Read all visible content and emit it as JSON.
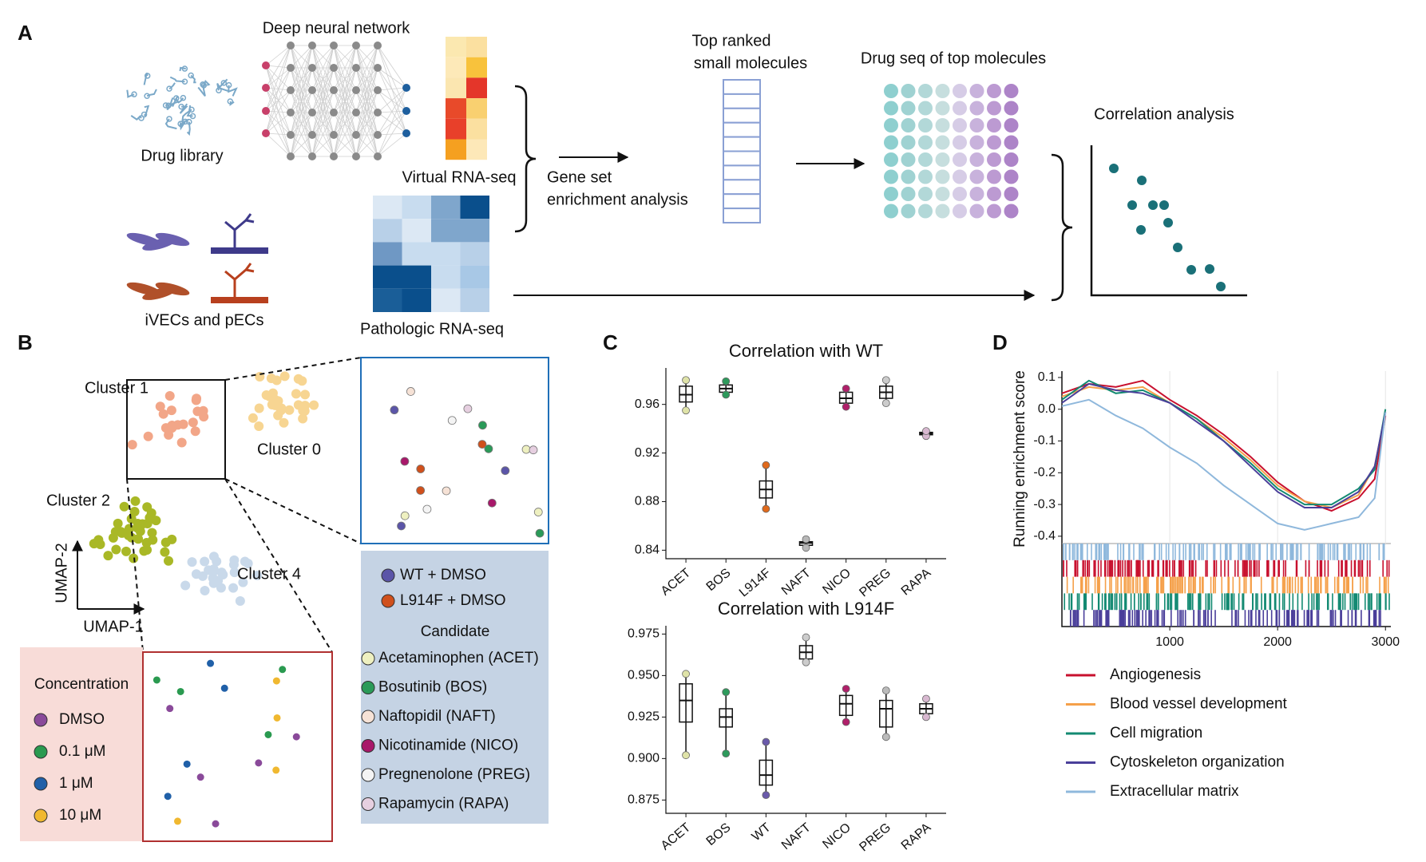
{
  "panel_a": {
    "label": "A",
    "network": "Deep neural network",
    "library": "Drug library",
    "virtual": "Virtual RNA-seq",
    "gsea": [
      "Gene set",
      "enrichment analysis"
    ],
    "top_ranked": [
      "Top ranked",
      "small molecules"
    ],
    "drug_seq": "Drug seq of top molecules",
    "correlation": "Correlation analysis",
    "cells": "iVECs and pECs",
    "pathologic": "Pathologic RNA-seq"
  },
  "panel_b": {
    "label": "B",
    "clusters": [
      {
        "name": "Cluster 1",
        "color": "#f2a688"
      },
      {
        "name": "Cluster 0",
        "color": "#f7d592"
      },
      {
        "name": "Cluster 2",
        "color": "#a9b826"
      },
      {
        "name": "Cluster 4",
        "color": "#c9d9ea"
      }
    ],
    "axis_y": "UMAP-2",
    "axis_x": "UMAP-1",
    "controls": [
      {
        "name": "WT + DMSO",
        "color": "#5b55a8"
      },
      {
        "name": "L914F + DMSO",
        "color": "#d0501c"
      }
    ],
    "candidate_title": "Candidate",
    "candidates": [
      {
        "name": "Acetaminophen (ACET)",
        "color": "#eef0c0"
      },
      {
        "name": "Bosutinib (BOS)",
        "color": "#2a9a58"
      },
      {
        "name": "Naftopidil (NAFT)",
        "color": "#f6e2d6"
      },
      {
        "name": "Nicotinamide (NICO)",
        "color": "#a8186a"
      },
      {
        "name": "Pregnenolone (PREG)",
        "color": "#f4f4f4"
      },
      {
        "name": "Rapamycin (RAPA)",
        "color": "#e6cfe0"
      }
    ],
    "concentration_title": "Concentration",
    "concentrations": [
      {
        "name": "DMSO",
        "color": "#8a4a9a"
      },
      {
        "name": "0.1 μM",
        "color": "#2a9a50"
      },
      {
        "name": "1 μM",
        "color": "#2060a8"
      },
      {
        "name": "10 μM",
        "color": "#f0b830"
      }
    ]
  },
  "panel_c_label": "C",
  "panel_d_label": "D",
  "chart_data": [
    {
      "type": "box",
      "title": "Correlation with WT",
      "title_color": "#5a4aa0",
      "categories": [
        "ACET",
        "BOS",
        "L914F",
        "NAFT",
        "NICO",
        "PREG",
        "RAPA"
      ],
      "colors": [
        "#dfe3a8",
        "#2e9a5c",
        "#e06a1c",
        "#b8b8b8",
        "#b0206a",
        "#cccccc",
        "#d8b8d0"
      ],
      "min": [
        0.955,
        0.968,
        0.874,
        0.842,
        0.958,
        0.961,
        0.934
      ],
      "q1": [
        0.962,
        0.97,
        0.883,
        0.844,
        0.961,
        0.965,
        0.935
      ],
      "median": [
        0.968,
        0.973,
        0.89,
        0.846,
        0.965,
        0.97,
        0.936
      ],
      "q3": [
        0.975,
        0.976,
        0.897,
        0.847,
        0.97,
        0.975,
        0.937
      ],
      "max": [
        0.98,
        0.979,
        0.91,
        0.849,
        0.973,
        0.98,
        0.938
      ],
      "ylim": [
        0.833,
        0.99
      ],
      "yticks": [
        0.84,
        0.88,
        0.92,
        0.96
      ]
    },
    {
      "type": "box",
      "title": "Correlation with L914F",
      "title_color": "#d05a10",
      "categories": [
        "ACET",
        "BOS",
        "WT",
        "NAFT",
        "NICO",
        "PREG",
        "RAPA"
      ],
      "colors": [
        "#dfe3a8",
        "#2e9a5c",
        "#6a5aaa",
        "#cccccc",
        "#b0206a",
        "#bbbbbb",
        "#d8b8d0"
      ],
      "min": [
        0.902,
        0.903,
        0.878,
        0.958,
        0.922,
        0.913,
        0.925
      ],
      "q1": [
        0.922,
        0.919,
        0.884,
        0.96,
        0.926,
        0.919,
        0.927
      ],
      "median": [
        0.935,
        0.925,
        0.89,
        0.964,
        0.933,
        0.93,
        0.93
      ],
      "q3": [
        0.945,
        0.93,
        0.899,
        0.968,
        0.938,
        0.935,
        0.933
      ],
      "max": [
        0.951,
        0.94,
        0.91,
        0.973,
        0.942,
        0.941,
        0.936
      ],
      "ylim": [
        0.867,
        0.98
      ],
      "yticks": [
        0.875,
        {
          "value": 0.9,
          "label": "0.900"
        },
        0.925,
        {
          "value": 0.95,
          "label": "0.950"
        },
        0.975
      ]
    },
    {
      "type": "line",
      "ylabel": "Running enrichment score",
      "x": [
        0,
        250,
        500,
        750,
        1000,
        1250,
        1500,
        1750,
        2000,
        2250,
        2500,
        2750,
        2900,
        3000
      ],
      "series": [
        {
          "name": "Angiogenesis",
          "color": "#c8102e",
          "values": [
            0.05,
            0.08,
            0.07,
            0.09,
            0.03,
            -0.02,
            -0.08,
            -0.15,
            -0.23,
            -0.29,
            -0.32,
            -0.28,
            -0.22,
            -0.02
          ]
        },
        {
          "name": "Blood vessel development",
          "color": "#f5a04a",
          "values": [
            0.04,
            0.07,
            0.06,
            0.07,
            0.02,
            -0.03,
            -0.09,
            -0.16,
            -0.24,
            -0.29,
            -0.31,
            -0.27,
            -0.18,
            -0.01
          ]
        },
        {
          "name": "Cell migration",
          "color": "#138a72",
          "values": [
            0.03,
            0.09,
            0.05,
            0.06,
            0.02,
            -0.03,
            -0.1,
            -0.17,
            -0.25,
            -0.3,
            -0.3,
            -0.25,
            -0.19,
            0
          ]
        },
        {
          "name": "Cytoskeleton organization",
          "color": "#4a3f9a",
          "values": [
            0.02,
            0.08,
            0.06,
            0.05,
            0.02,
            -0.04,
            -0.1,
            -0.18,
            -0.26,
            -0.31,
            -0.31,
            -0.26,
            -0.18,
            -0.01
          ]
        },
        {
          "name": "Extracellular matrix",
          "color": "#8fb8dc",
          "values": [
            0.01,
            0.03,
            -0.02,
            -0.06,
            -0.12,
            -0.17,
            -0.24,
            -0.3,
            -0.36,
            -0.38,
            -0.36,
            -0.34,
            -0.28,
            -0.01
          ]
        }
      ],
      "xlim": [
        0,
        3050
      ],
      "xticks": [
        1000,
        2000,
        3000
      ],
      "ylim": [
        -0.423,
        0.12
      ],
      "yticks": [
        0.1,
        {
          "value": 0,
          "label": "0.0"
        },
        -0.1,
        -0.2,
        -0.3,
        -0.4
      ],
      "legend": "below"
    }
  ]
}
